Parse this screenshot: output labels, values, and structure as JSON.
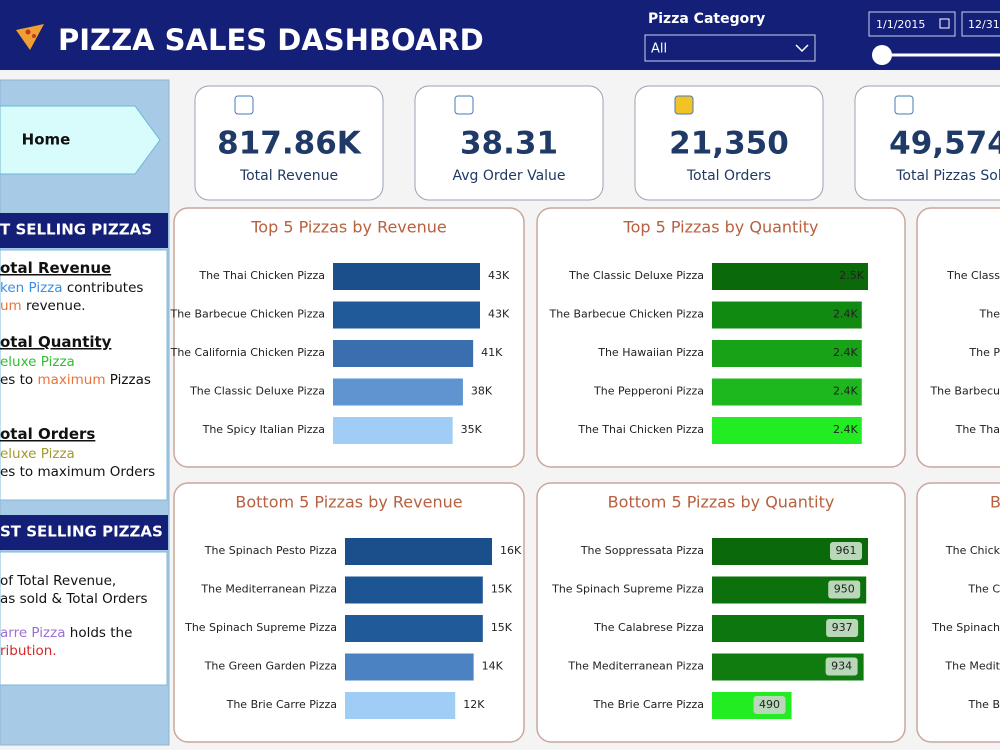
{
  "header": {
    "title": "PIZZA SALES DASHBOARD",
    "category_label": "Pizza Category",
    "category_value": "All",
    "date_start": "1/1/2015",
    "date_end": "12/31/"
  },
  "nav": {
    "home": "Home"
  },
  "side": {
    "best_title": "T SELLING PIZZAS",
    "best_lines": [
      [
        {
          "t": "otal Revenue",
          "c": "#111",
          "h": true
        }
      ],
      [
        {
          "t": "ken Pizza",
          "c": "#3a8ee6"
        },
        {
          "t": " contributes",
          "c": "#111"
        }
      ],
      [
        {
          "t": "um",
          "c": "#e8743b"
        },
        {
          "t": " revenue.",
          "c": "#111"
        }
      ],
      [
        {
          "t": "otal Quantity",
          "c": "#111",
          "h": true
        }
      ],
      [
        {
          "t": "eluxe Pizza",
          "c": "#2fbf2f"
        }
      ],
      [
        {
          "t": "es to ",
          "c": "#111"
        },
        {
          "t": "maximum",
          "c": "#e8743b"
        },
        {
          "t": " Pizzas",
          "c": "#111"
        }
      ],
      [
        {
          "t": "otal Orders",
          "c": "#111",
          "h": true
        }
      ],
      [
        {
          "t": "eluxe Pizza",
          "c": "#a39a2a"
        }
      ],
      [
        {
          "t": "es to maximum Orders",
          "c": "#111"
        }
      ]
    ],
    "worst_title": "ST SELLING PIZZAS",
    "worst_lines": [
      [
        {
          "t": "of Total Revenue,",
          "c": "#111"
        }
      ],
      [
        {
          "t": "as sold & Total Orders",
          "c": "#111"
        }
      ],
      [
        {
          "t": "arre Pizza",
          "c": "#9b6fd6"
        },
        {
          "t": " holds the",
          "c": "#111"
        }
      ],
      [
        {
          "t": "ribution.",
          "c": "#d42a2a"
        }
      ]
    ]
  },
  "kpis": [
    {
      "value": "817.86K",
      "label": "Total Revenue"
    },
    {
      "value": "38.31",
      "label": "Avg Order Value"
    },
    {
      "value": "21,350",
      "label": "Total Orders"
    },
    {
      "value": "49,574",
      "label": "Total Pizzas Sol"
    }
  ],
  "charts": [
    {
      "type": "bar",
      "title": "Top 5 Pizzas by Revenue",
      "categories": [
        "The Thai Chicken Pizza",
        "The Barbecue Chicken Pizza",
        "The California Chicken Pizza",
        "The Classic Deluxe Pizza",
        "The Spicy Italian Pizza"
      ],
      "values": [
        43,
        43,
        41,
        38,
        35
      ],
      "value_labels": [
        "43K",
        "43K",
        "41K",
        "38K",
        "35K"
      ],
      "colors": [
        "#1a4f8b",
        "#215a99",
        "#3a6eae",
        "#5e94cf",
        "#9fcdf5"
      ]
    },
    {
      "type": "bar",
      "title": "Top 5 Pizzas by Quantity",
      "categories": [
        "The Classic Deluxe Pizza",
        "The Barbecue Chicken Pizza",
        "The Hawaiian Pizza",
        "The Pepperoni Pizza",
        "The Thai Chicken Pizza"
      ],
      "values": [
        2.5,
        2.4,
        2.4,
        2.4,
        2.4
      ],
      "value_labels": [
        "2.5K",
        "2.4K",
        "2.4K",
        "2.4K",
        "2.4K"
      ],
      "colors": [
        "#0a6a0a",
        "#118a11",
        "#17a217",
        "#1db81d",
        "#22ec22"
      ]
    },
    {
      "type": "bar",
      "title": "Bottom 5 Pizzas by Revenue",
      "categories": [
        "The Spinach Pesto Pizza",
        "The Mediterranean Pizza",
        "The Spinach Supreme Pizza",
        "The Green Garden Pizza",
        "The Brie Carre Pizza"
      ],
      "values": [
        16,
        15,
        15,
        14,
        12
      ],
      "value_labels": [
        "16K",
        "15K",
        "15K",
        "14K",
        "12K"
      ],
      "colors": [
        "#1a4f8b",
        "#1d5594",
        "#215a99",
        "#4b82c2",
        "#9fcdf5"
      ]
    },
    {
      "type": "bar",
      "title": "Bottom 5 Pizzas by Quantity",
      "categories": [
        "The Soppressata Pizza",
        "The Spinach Supreme Pizza",
        "The Calabrese Pizza",
        "The Mediterranean Pizza",
        "The Brie Carre Pizza"
      ],
      "values": [
        961,
        950,
        937,
        934,
        490
      ],
      "colors": [
        "#0a6a0a",
        "#0c700c",
        "#0e760e",
        "#107c10",
        "#22ec22"
      ]
    }
  ],
  "partial_cards": [
    {
      "categories": [
        "The Class",
        "The",
        "The P",
        "The Barbecu",
        "The Tha"
      ]
    },
    {
      "title": "B",
      "categories": [
        "The Chick",
        "The C",
        "The Spinach",
        "The Medit",
        "The B"
      ]
    }
  ]
}
